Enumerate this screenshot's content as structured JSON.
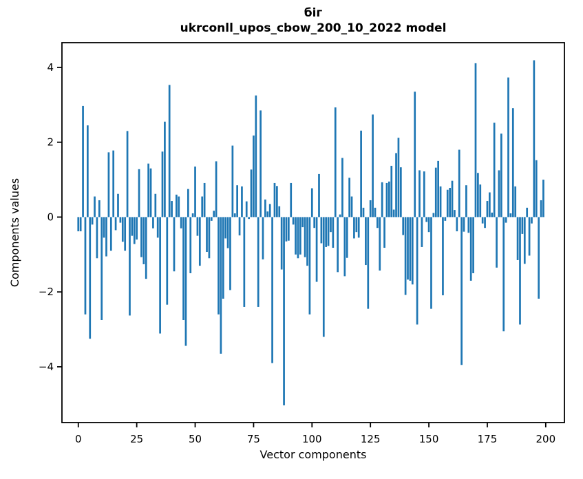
{
  "figure": {
    "title_line1": "біг",
    "title_line2": "ukrconll_upos_cbow_200_10_2022 model",
    "xlabel": "Vector components",
    "ylabel": "Components values",
    "background": "#ffffff",
    "spine_color": "#000000",
    "text_color": "#000000"
  },
  "chart_data": {
    "type": "bar",
    "title": "біг\nukrconll_upos_cbow_200_10_2022 model",
    "xlabel": "Vector components",
    "ylabel": "Components values",
    "legend": null,
    "grid": false,
    "bar_color": "#1f77b4",
    "bar_width_units": 0.8,
    "xlim": [
      -7,
      208
    ],
    "ylim": [
      -5.49,
      4.66
    ],
    "xticks": [
      0,
      25,
      50,
      75,
      100,
      125,
      150,
      175,
      200
    ],
    "yticks": [
      -4,
      -2,
      0,
      2,
      4
    ],
    "n_components": 200,
    "values": [
      -0.38,
      -0.38,
      2.97,
      -2.6,
      2.45,
      -3.25,
      -0.2,
      0.55,
      -1.1,
      0.45,
      -2.75,
      -0.55,
      -1.05,
      1.73,
      -0.9,
      1.78,
      -0.35,
      0.62,
      -0.15,
      -0.66,
      -0.9,
      2.3,
      -2.63,
      -0.5,
      -0.72,
      -0.6,
      1.28,
      -1.07,
      -1.26,
      -1.65,
      1.43,
      1.3,
      -0.3,
      0.62,
      -0.55,
      -3.11,
      1.75,
      2.55,
      -2.34,
      3.53,
      0.43,
      -1.45,
      0.6,
      0.55,
      -0.3,
      -2.75,
      -3.44,
      0.75,
      -1.5,
      0.1,
      1.35,
      -0.5,
      -1.3,
      0.55,
      0.91,
      -0.93,
      -1.1,
      -0.1,
      0.17,
      1.49,
      -2.6,
      -3.65,
      -2.18,
      -0.57,
      -0.83,
      -1.95,
      1.91,
      0.1,
      0.85,
      -0.49,
      0.82,
      -2.4,
      0.42,
      -0.05,
      1.27,
      2.18,
      3.25,
      -2.4,
      2.85,
      -1.13,
      0.47,
      0.15,
      0.35,
      -3.9,
      0.91,
      0.83,
      0.29,
      -1.4,
      -5.03,
      -0.65,
      -0.63,
      0.91,
      -0.2,
      -1.0,
      -1.1,
      -1.0,
      -0.27,
      -1.07,
      -1.3,
      -2.6,
      0.77,
      -0.29,
      -1.73,
      1.15,
      -0.7,
      -3.2,
      -0.8,
      -0.77,
      -0.4,
      -0.82,
      2.93,
      -1.47,
      0.07,
      1.58,
      -1.58,
      -1.09,
      1.05,
      0.55,
      -0.57,
      -0.4,
      -0.55,
      2.31,
      0.25,
      -1.28,
      -2.45,
      0.45,
      2.74,
      0.25,
      -0.29,
      -1.43,
      0.93,
      -0.82,
      0.91,
      0.95,
      1.37,
      0.2,
      1.71,
      2.12,
      1.33,
      -0.48,
      -2.08,
      -1.67,
      -1.7,
      -1.8,
      3.35,
      -2.87,
      1.25,
      -0.8,
      1.22,
      -0.13,
      -0.4,
      -2.45,
      0.11,
      1.32,
      1.5,
      0.82,
      -2.09,
      -0.1,
      0.73,
      0.78,
      0.97,
      0.19,
      -0.38,
      1.8,
      -3.95,
      -0.39,
      0.85,
      -0.42,
      -1.7,
      -1.5,
      4.11,
      1.18,
      0.87,
      -0.17,
      -0.29,
      0.43,
      0.66,
      0.12,
      2.52,
      -1.35,
      1.25,
      2.23,
      -3.05,
      -0.15,
      3.73,
      0.1,
      2.91,
      0.82,
      -1.15,
      -2.87,
      -0.45,
      -1.25,
      0.25,
      -1.03,
      -0.17,
      4.19,
      1.52,
      -2.18,
      0.45,
      1.0
    ]
  }
}
